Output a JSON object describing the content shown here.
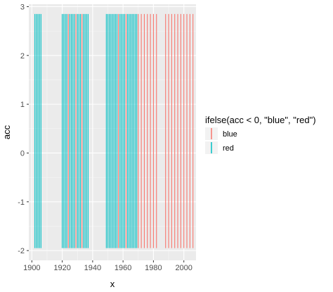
{
  "chart_data": {
    "type": "bar",
    "xlabel": "x",
    "ylabel": "acc",
    "xlim": [
      1898,
      2008
    ],
    "ylim": [
      -2.2,
      3.05
    ],
    "x_ticks": [
      1900,
      1920,
      1940,
      1960,
      1980,
      2000
    ],
    "y_ticks": [
      -2,
      -1,
      0,
      1,
      2,
      3
    ],
    "grid": true,
    "legend": {
      "title": "ifelse(acc < 0, \"blue\", \"red\")",
      "position": "right",
      "entries": [
        {
          "label": "blue",
          "color": "#F8766D"
        },
        {
          "label": "red",
          "color": "#00BFC4"
        }
      ]
    },
    "bar_top": 2.85,
    "bar_bottom": -1.95,
    "series": [
      {
        "name": "blue",
        "color": "#F8766D",
        "x": [
          1924,
          1929,
          1933,
          1957,
          1962,
          1970,
          1972,
          1974,
          1976,
          1978,
          1980,
          1982,
          1988,
          1990,
          1992,
          1994,
          1996,
          1998,
          2000,
          2002,
          2004,
          2006
        ]
      },
      {
        "name": "red",
        "color": "#00BFC4",
        "x": [
          1902,
          1903,
          1904,
          1905,
          1906,
          1920,
          1921,
          1922,
          1923,
          1925,
          1926,
          1927,
          1928,
          1930,
          1931,
          1932,
          1934,
          1935,
          1936,
          1937,
          1949,
          1950,
          1951,
          1952,
          1953,
          1954,
          1955,
          1956,
          1958,
          1959,
          1960,
          1961,
          1963,
          1964,
          1965,
          1966,
          1967,
          1968,
          1969
        ]
      }
    ]
  }
}
